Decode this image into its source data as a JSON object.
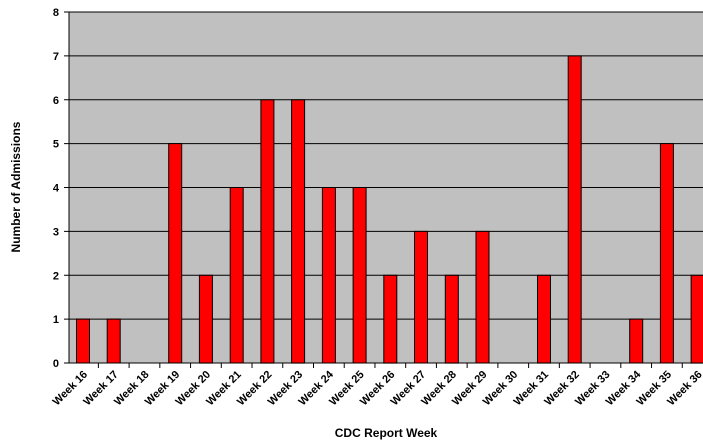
{
  "chart_data": {
    "type": "bar",
    "title": "",
    "xlabel": "CDC Report Week",
    "ylabel": "Number of Admissions",
    "categories": [
      "Week 16",
      "Week 17",
      "Week 18",
      "Week 19",
      "Week 20",
      "Week 21",
      "Week 22",
      "Week 23",
      "Week 24",
      "Week 25",
      "Week 26",
      "Week 27",
      "Week 28",
      "Week 29",
      "Week 30",
      "Week 31",
      "Week 32",
      "Week 33",
      "Week 34",
      "Week 35",
      "Week 36"
    ],
    "values": [
      1,
      1,
      0,
      5,
      2,
      4,
      6,
      6,
      4,
      4,
      2,
      3,
      2,
      3,
      0,
      2,
      7,
      0,
      1,
      5,
      2
    ],
    "ylim": [
      0,
      8
    ],
    "yticks": [
      0,
      1,
      2,
      3,
      4,
      5,
      6,
      7,
      8
    ],
    "grid": true,
    "legend": "none",
    "colors": {
      "bar_fill": "#ff0000",
      "bar_stroke": "#000000",
      "plot_background": "#c0c0c0",
      "gridline": "#000000"
    }
  }
}
